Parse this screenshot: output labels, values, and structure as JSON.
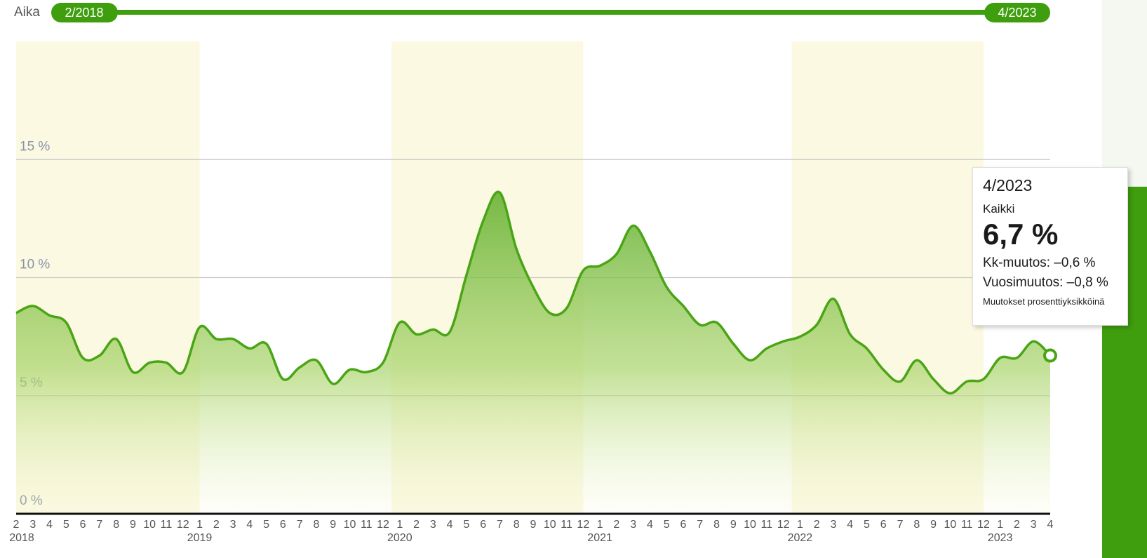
{
  "slider": {
    "label": "Aika",
    "start": "2/2018",
    "end": "4/2023"
  },
  "chart_data": {
    "type": "area",
    "categories": [
      "2",
      "3",
      "4",
      "5",
      "6",
      "7",
      "8",
      "9",
      "10",
      "11",
      "12",
      "1",
      "2",
      "3",
      "4",
      "5",
      "6",
      "7",
      "8",
      "9",
      "10",
      "11",
      "12",
      "1",
      "2",
      "3",
      "4",
      "5",
      "6",
      "7",
      "8",
      "9",
      "10",
      "11",
      "12",
      "1",
      "2",
      "3",
      "4",
      "5",
      "6",
      "7",
      "8",
      "9",
      "10",
      "11",
      "12",
      "1",
      "2",
      "3",
      "4",
      "5",
      "6",
      "7",
      "8",
      "9",
      "10",
      "11",
      "12",
      "1",
      "2",
      "3",
      "4"
    ],
    "years": [
      "2018",
      "2019",
      "2020",
      "2021",
      "2022",
      "2023"
    ],
    "series": [
      {
        "name": "Kaikki",
        "color": "#4aa516",
        "values": [
          8.5,
          8.8,
          8.4,
          8.1,
          6.6,
          6.7,
          7.4,
          6.0,
          6.4,
          6.4,
          6.0,
          7.9,
          7.4,
          7.4,
          7.0,
          7.2,
          5.7,
          6.2,
          6.5,
          5.5,
          6.1,
          6.0,
          6.4,
          8.1,
          7.6,
          7.8,
          7.7,
          10.1,
          12.4,
          13.6,
          11.2,
          9.6,
          8.5,
          8.7,
          10.3,
          10.5,
          11.0,
          12.2,
          11.1,
          9.6,
          8.8,
          8.0,
          8.1,
          7.2,
          6.5,
          7.0,
          7.3,
          7.5,
          8.0,
          9.1,
          7.6,
          7.0,
          6.1,
          5.6,
          6.5,
          5.7,
          5.1,
          5.6,
          5.7,
          6.6,
          6.6,
          7.3,
          6.7
        ]
      }
    ],
    "ylim": [
      0,
      20
    ],
    "yticks": [
      {
        "value": 0,
        "label": "0 %"
      },
      {
        "value": 5,
        "label": "5 %"
      },
      {
        "value": 10,
        "label": "10 %"
      },
      {
        "value": 15,
        "label": "15 %"
      }
    ],
    "grid": true,
    "tooltip": {
      "date": "4/2023",
      "series": "Kaikki",
      "value": "6,7 %",
      "monthly": "Kk-muutos: –0,6 %",
      "yearly": "Vuosimuutos: –0,8 %",
      "note": "Muutokset prosenttiyksikköinä"
    }
  }
}
